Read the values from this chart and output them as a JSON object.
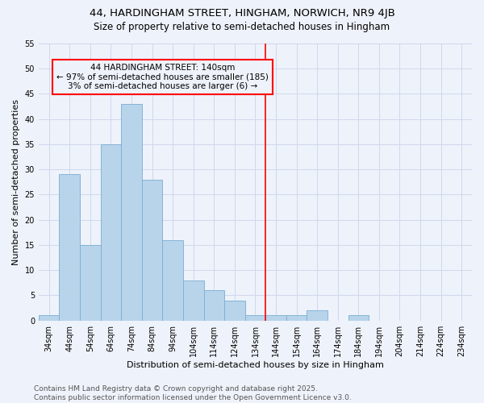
{
  "title": "44, HARDINGHAM STREET, HINGHAM, NORWICH, NR9 4JB",
  "subtitle": "Size of property relative to semi-detached houses in Hingham",
  "xlabel": "Distribution of semi-detached houses by size in Hingham",
  "ylabel": "Number of semi-detached properties",
  "categories": [
    "34sqm",
    "44sqm",
    "54sqm",
    "64sqm",
    "74sqm",
    "84sqm",
    "94sqm",
    "104sqm",
    "114sqm",
    "124sqm",
    "134sqm",
    "144sqm",
    "154sqm",
    "164sqm",
    "174sqm",
    "184sqm",
    "194sqm",
    "204sqm",
    "214sqm",
    "224sqm",
    "234sqm"
  ],
  "values": [
    1,
    29,
    15,
    35,
    43,
    28,
    16,
    8,
    6,
    4,
    1,
    1,
    1,
    2,
    0,
    1,
    0,
    0,
    0,
    0,
    0
  ],
  "bar_color": "#b8d4ea",
  "bar_edge_color": "#7aadd4",
  "property_line_x": 10.5,
  "annotation_line1": "44 HARDINGHAM STREET: 140sqm",
  "annotation_line2": "← 97% of semi-detached houses are smaller (185)",
  "annotation_line3": "3% of semi-detached houses are larger (6) →",
  "ylim": [
    0,
    55
  ],
  "yticks": [
    0,
    5,
    10,
    15,
    20,
    25,
    30,
    35,
    40,
    45,
    50,
    55
  ],
  "footnote": "Contains HM Land Registry data © Crown copyright and database right 2025.\nContains public sector information licensed under the Open Government Licence v3.0.",
  "background_color": "#eef2fa",
  "grid_color": "#d0d8ee",
  "title_fontsize": 9.5,
  "subtitle_fontsize": 8.5,
  "axis_label_fontsize": 8,
  "tick_fontsize": 7,
  "annotation_fontsize": 7.5,
  "footnote_fontsize": 6.5
}
